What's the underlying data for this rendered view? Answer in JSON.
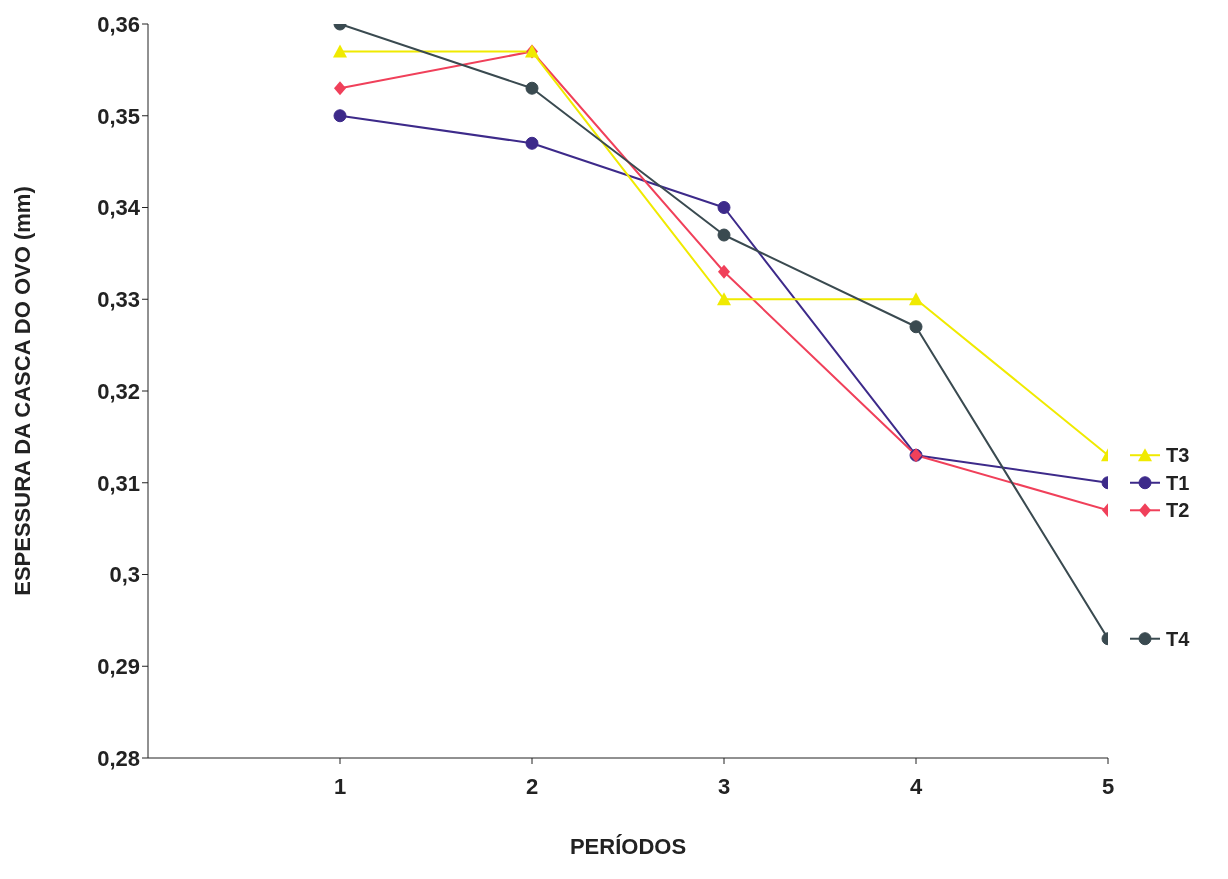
{
  "chart_data": {
    "type": "line",
    "xlabel": "PERÍODOS",
    "ylabel": "ESPESSURA DA CASCA DO OVO (mm)",
    "x": [
      1,
      2,
      3,
      4,
      5
    ],
    "xlim": [
      0,
      5
    ],
    "xticks": [
      1,
      2,
      3,
      4,
      5
    ],
    "ylim": [
      0.28,
      0.36
    ],
    "yticks": [
      {
        "value": 0.28,
        "label": "0,28"
      },
      {
        "value": 0.29,
        "label": "0,29"
      },
      {
        "value": 0.3,
        "label": "0,3"
      },
      {
        "value": 0.31,
        "label": "0,31"
      },
      {
        "value": 0.32,
        "label": "0,32"
      },
      {
        "value": 0.33,
        "label": "0,33"
      },
      {
        "value": 0.34,
        "label": "0,34"
      },
      {
        "value": 0.35,
        "label": "0,35"
      },
      {
        "value": 0.36,
        "label": "0,36"
      }
    ],
    "grid": false,
    "legend": "right",
    "line_style": "solid",
    "series": [
      {
        "name": "T1",
        "color": "#3d2a8a",
        "marker": "circle",
        "values": [
          0.35,
          0.347,
          0.34,
          0.313,
          0.31
        ]
      },
      {
        "name": "T2",
        "color": "#f0405a",
        "marker": "diamond",
        "values": [
          0.353,
          0.357,
          0.333,
          0.313,
          0.307
        ]
      },
      {
        "name": "T3",
        "color": "#f0ea00",
        "marker": "triangle",
        "values": [
          0.357,
          0.357,
          0.33,
          0.33,
          0.313
        ]
      },
      {
        "name": "T4",
        "color": "#3a4a50",
        "marker": "circle",
        "values": [
          0.36,
          0.353,
          0.337,
          0.327,
          0.293
        ]
      }
    ]
  }
}
